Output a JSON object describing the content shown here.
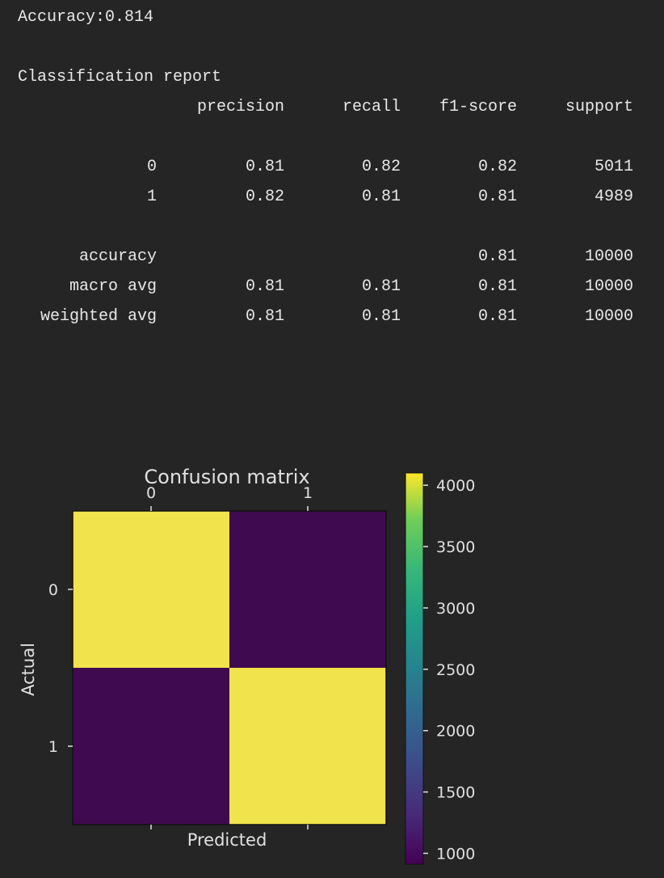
{
  "accuracy_line": "Accuracy:0.814",
  "report": {
    "heading": "Classification report",
    "columns": [
      "precision",
      "recall",
      "f1-score",
      "support"
    ],
    "rows": [
      {
        "label": "0",
        "precision": "0.81",
        "recall": "0.82",
        "f1": "0.82",
        "support": "5011"
      },
      {
        "label": "1",
        "precision": "0.82",
        "recall": "0.81",
        "f1": "0.81",
        "support": "4989"
      },
      {
        "label": "accuracy",
        "precision": "",
        "recall": "",
        "f1": "0.81",
        "support": "10000"
      },
      {
        "label": "macro avg",
        "precision": "0.81",
        "recall": "0.81",
        "f1": "0.81",
        "support": "10000"
      },
      {
        "label": "weighted avg",
        "precision": "0.81",
        "recall": "0.81",
        "f1": "0.81",
        "support": "10000"
      }
    ]
  },
  "chart_data": {
    "type": "heatmap",
    "title": "Confusion matrix",
    "xlabel": "Predicted",
    "ylabel": "Actual",
    "x_categories": [
      "0",
      "1"
    ],
    "y_categories": [
      "0",
      "1"
    ],
    "values": [
      [
        4100,
        911
      ],
      [
        949,
        4040
      ]
    ],
    "colormap": "viridis",
    "colorbar_ticks": [
      "4000",
      "3500",
      "3000",
      "2500",
      "2000",
      "1500",
      "1000"
    ],
    "colorbar_range": [
      911,
      4100
    ],
    "colors": {
      "high": "#f0e34c",
      "low": "#3f0a50"
    }
  }
}
